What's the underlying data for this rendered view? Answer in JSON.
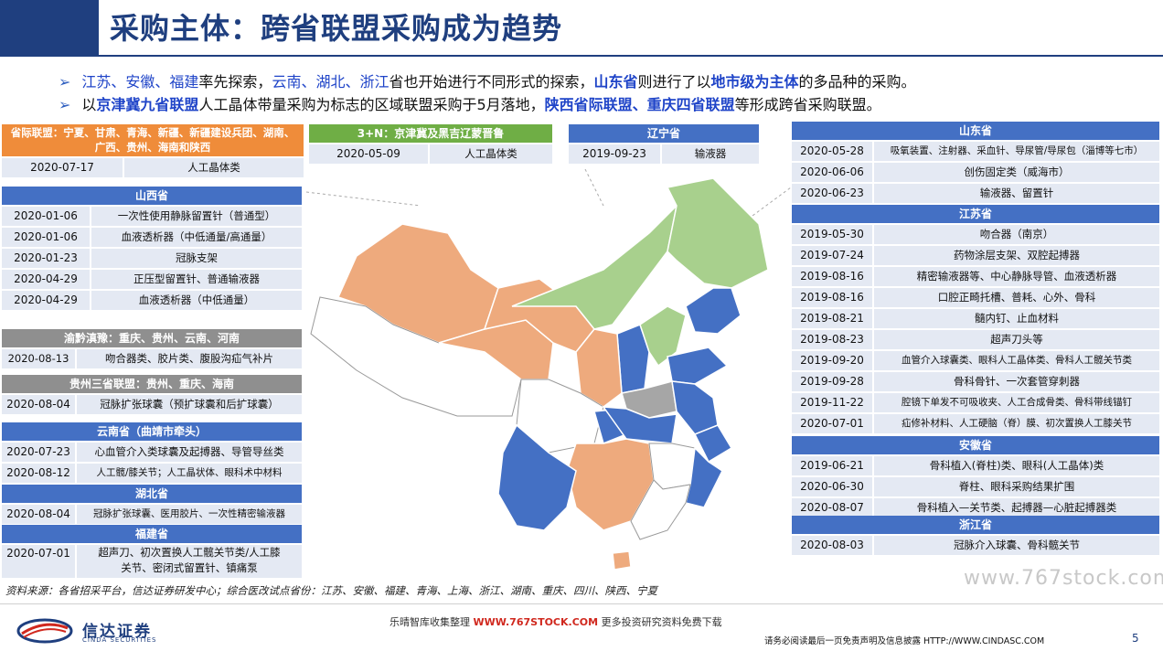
{
  "title": "采购主体：跨省联盟采购成为趋势",
  "bullets": {
    "b1": {
      "p1": "江苏、安徽、福建",
      "p2": "率先探索，",
      "p3": "云南、湖北、浙江",
      "p4": "省也开始进行不同形式的探索，",
      "p5": "山东省",
      "p6": "则进行了以",
      "p7": "地市级为主体",
      "p8": "的多品种的采购。"
    },
    "b2": {
      "p1": "以",
      "p2": "京津冀九省联盟",
      "p3": "人工晶体带量采购为标志的区域联盟采购于5月落地，",
      "p4": "陕西省际联盟、重庆四省联盟",
      "p5": "等形成跨省采购联盟。"
    }
  },
  "tables": {
    "provincial_alliance": {
      "header": "省际联盟：宁夏、甘肃、青海、新疆、新疆建设兵团、湖南、广西、贵州、海南和陕西",
      "header_line1": "省际联盟：宁夏、甘肃、青海、新疆、新疆建设兵团、湖南、",
      "header_line2": "广西、贵州、海南和陕西",
      "rows": [
        {
          "date": "2020-07-17",
          "item": "人工晶体类"
        }
      ]
    },
    "jjj": {
      "header": "3+N：京津冀及黑吉辽蒙晋鲁",
      "rows": [
        {
          "date": "2020-05-09",
          "item": "人工晶体类"
        }
      ]
    },
    "liaoning": {
      "header": "辽宁省",
      "rows": [
        {
          "date": "2019-09-23",
          "item": "输液器"
        }
      ]
    },
    "shanxi": {
      "header": "山西省",
      "rows": [
        {
          "date": "2020-01-06",
          "item": "一次性使用静脉留置针（普通型）"
        },
        {
          "date": "2020-01-06",
          "item": "血液透析器（中低通量/高通量）"
        },
        {
          "date": "2020-01-23",
          "item": "冠脉支架"
        },
        {
          "date": "2020-04-29",
          "item": "正压型留置针、普通输液器"
        },
        {
          "date": "2020-04-29",
          "item": "血液透析器（中低通量）"
        }
      ]
    },
    "yuqiandianyu": {
      "header": "渝黔滇豫：重庆、贵州、云南、河南",
      "rows": [
        {
          "date": "2020-08-13",
          "item": "吻合器类、胶片类、腹股沟疝气补片"
        }
      ]
    },
    "guizhou3": {
      "header": "贵州三省联盟：贵州、重庆、海南",
      "rows": [
        {
          "date": "2020-08-04",
          "item": "冠脉扩张球囊（预扩球囊和后扩球囊）"
        }
      ]
    },
    "yunnan": {
      "header": "云南省（曲靖市牵头）",
      "rows": [
        {
          "date": "2020-07-23",
          "item": "心血管介入类球囊及起搏器、导管导丝类"
        },
        {
          "date": "2020-08-12",
          "item": "人工髋/膝关节；人工晶状体、眼科术中材料"
        }
      ]
    },
    "hubei": {
      "header": "湖北省",
      "rows": [
        {
          "date": "2020-08-04",
          "item": "冠脉扩张球囊、医用胶片、一次性精密输液器"
        }
      ]
    },
    "fujian": {
      "header": "福建省",
      "rows": [
        {
          "date": "2020-07-01",
          "item_line1": "超声刀、初次置换人工髋关节类/人工膝",
          "item_line2": "关节、密闭式留置针、镇痛泵"
        }
      ]
    },
    "shandong": {
      "header": "山东省",
      "rows": [
        {
          "date": "2020-05-28",
          "item": "吸氧装置、注射器、采血针、导尿管/导尿包（淄博等七市）"
        },
        {
          "date": "2020-06-06",
          "item": "创伤固定类（威海市）"
        },
        {
          "date": "2020-06-23",
          "item": "输液器、留置针"
        }
      ]
    },
    "jiangsu": {
      "header": "江苏省",
      "rows": [
        {
          "date": "2019-05-30",
          "item": "吻合器（南京）"
        },
        {
          "date": "2019-07-24",
          "item": "药物涂层支架、双腔起搏器"
        },
        {
          "date": "2019-08-16",
          "item": "精密输液器等、中心静脉导管、血液透析器"
        },
        {
          "date": "2019-08-16",
          "item": "口腔正畸托槽、普耗、心外、骨科"
        },
        {
          "date": "2019-08-21",
          "item": "髓内钉、止血材料"
        },
        {
          "date": "2019-08-23",
          "item": "超声刀头等"
        },
        {
          "date": "2019-09-20",
          "item": "血管介入球囊类、眼科人工晶体类、骨科人工髋关节类"
        },
        {
          "date": "2019-09-28",
          "item": "骨科骨针、一次套管穿刺器"
        },
        {
          "date": "2019-11-22",
          "item": "腔镜下单发不可吸收夹、人工合成骨类、骨科带线锚钉"
        },
        {
          "date": "2020-07-01",
          "item": "疝修补材料、人工硬脑（脊）膜、初次置换人工膝关节"
        }
      ]
    },
    "anhui": {
      "header": "安徽省",
      "rows": [
        {
          "date": "2019-06-21",
          "item": "骨科植入(脊柱)类、眼科(人工晶体)类"
        },
        {
          "date": "2020-06-30",
          "item": "脊柱、眼科采购结果扩围"
        },
        {
          "date": "2020-08-07",
          "item": "骨科植入—关节类、起搏器—心脏起搏器类"
        }
      ]
    },
    "zhejiang": {
      "header": "浙江省",
      "rows": [
        {
          "date": "2020-08-03",
          "item": "冠脉介入球囊、骨科髋关节"
        }
      ]
    }
  },
  "map_colors": {
    "blue": "#4470c4",
    "orange": "#eeaa7d",
    "green": "#a8d08d",
    "gray": "#a6a6a6",
    "white": "#ffffff"
  },
  "footer": {
    "source": "资料来源：各省招采平台，信达证券研发中心；综合医改试点省份：江苏、安徽、福建、青海、上海、浙江、湖南、重庆、四川、陕西、宁夏",
    "logo_cn": "信达证券",
    "logo_en": "CINDA SECURITIES",
    "promo_a": "乐晴智库收集整理",
    "promo_url": "WWW.767STOCK.COM",
    "promo_b": "更多投资研究资料免费下载",
    "disclaimer": "请务必阅读最后一页免责声明及信息披露   HTTP://WWW.CINDASC.COM",
    "page": "5",
    "watermark": "www.767stock.com"
  }
}
